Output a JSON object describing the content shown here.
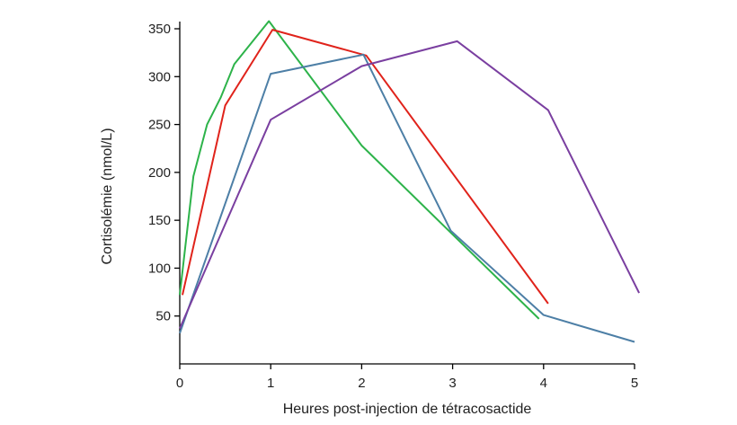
{
  "chart_data": {
    "type": "line",
    "title": "",
    "xlabel": "Heures post-injection de tétracosactide",
    "ylabel": "Cortisolémie (nmol/L)",
    "xlim": [
      0,
      5
    ],
    "ylim": [
      0,
      350
    ],
    "xticks": [
      0,
      1,
      2,
      3,
      4,
      5
    ],
    "yticks": [
      50,
      100,
      150,
      200,
      250,
      300,
      350
    ],
    "grid": false,
    "series": [
      {
        "color": "#2db34a",
        "points": [
          [
            0,
            72
          ],
          [
            0.15,
            196
          ],
          [
            0.3,
            250
          ],
          [
            0.45,
            278
          ],
          [
            0.6,
            313
          ],
          [
            0.98,
            358
          ],
          [
            2.0,
            228
          ],
          [
            3.95,
            47
          ]
        ]
      },
      {
        "color": "#e0231b",
        "points": [
          [
            0.03,
            72
          ],
          [
            0.5,
            270
          ],
          [
            1.02,
            349
          ],
          [
            2.05,
            322
          ],
          [
            4.05,
            63
          ]
        ]
      },
      {
        "color": "#4d7fa6",
        "points": [
          [
            0,
            32
          ],
          [
            1.0,
            303
          ],
          [
            2.02,
            323
          ],
          [
            2.98,
            139
          ],
          [
            4.0,
            51
          ],
          [
            5.0,
            23
          ]
        ]
      },
      {
        "color": "#7a3fa0",
        "points": [
          [
            0,
            37
          ],
          [
            1.0,
            255
          ],
          [
            2.0,
            311
          ],
          [
            3.05,
            337
          ],
          [
            4.05,
            265
          ],
          [
            5.05,
            74
          ]
        ]
      }
    ]
  }
}
